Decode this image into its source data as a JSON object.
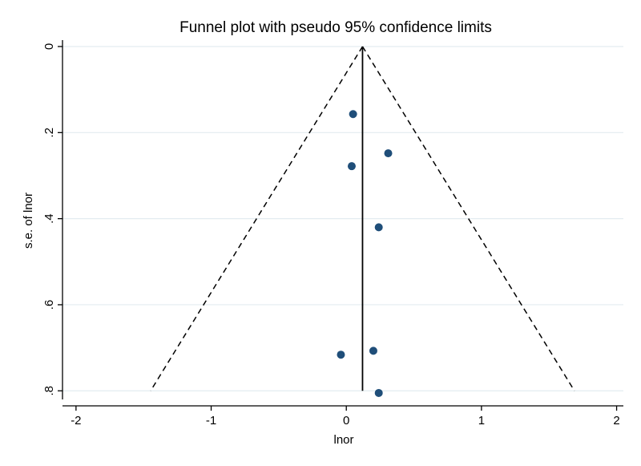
{
  "chart_data": {
    "type": "scatter",
    "title": "Funnel plot with pseudo 95% confidence limits",
    "xlabel": "lnor",
    "ylabel": "s.e. of lnor",
    "xlim": [
      -2.1,
      2.05
    ],
    "ylim": [
      0,
      0.82
    ],
    "y_reversed": true,
    "grid": true,
    "x_ticks": [
      -2,
      -1,
      0,
      1,
      2
    ],
    "x_tick_labels": [
      "-2",
      "-1",
      "0",
      "1",
      "2"
    ],
    "y_ticks": [
      0,
      0.2,
      0.4,
      0.6,
      0.8
    ],
    "y_tick_labels": [
      "0",
      ".2",
      ".4",
      ".6",
      ".8"
    ],
    "pooled_estimate": 0.12,
    "ci_multiplier": 1.96,
    "ci_se_max": 0.8,
    "points": [
      {
        "x": 0.05,
        "y": 0.157
      },
      {
        "x": 0.31,
        "y": 0.248
      },
      {
        "x": 0.04,
        "y": 0.278
      },
      {
        "x": 0.24,
        "y": 0.42
      },
      {
        "x": 0.2,
        "y": 0.707
      },
      {
        "x": -0.04,
        "y": 0.716
      },
      {
        "x": 0.24,
        "y": 0.805
      }
    ],
    "colors": {
      "marker": "#1f4e79",
      "grid": "#e3ecf0",
      "axis": "#000000",
      "line": "#000000"
    }
  }
}
